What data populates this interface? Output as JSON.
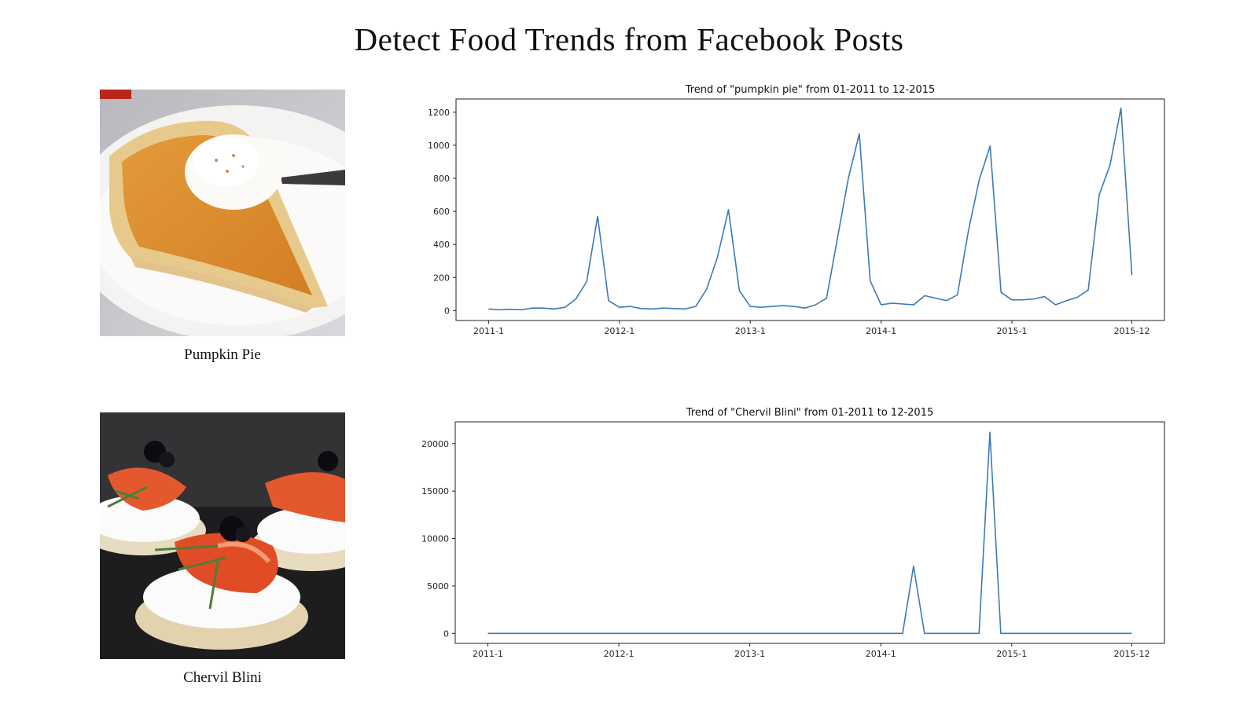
{
  "page": {
    "title": "Detect Food Trends from Facebook Posts"
  },
  "foods": [
    {
      "caption": "Pumpkin Pie",
      "image": "pumpkin-pie-photo"
    },
    {
      "caption": "Chervil Blini",
      "image": "chervil-blini-photo"
    }
  ],
  "colors": {
    "line": "#3a7bb8",
    "axis": "#222222"
  },
  "chart_data": [
    {
      "type": "line",
      "title": "Trend of \"pumpkin pie\" from 01-2011 to 12-2015",
      "xlabel": "",
      "ylabel": "",
      "x_ticks": [
        "2011-1",
        "2012-1",
        "2013-1",
        "2014-1",
        "2015-1",
        "2015-12"
      ],
      "y_ticks": [
        0,
        200,
        400,
        600,
        800,
        1000,
        1200
      ],
      "ylim": [
        -60,
        1280
      ],
      "grid": false,
      "x": [
        "2011-1",
        "2011-2",
        "2011-3",
        "2011-4",
        "2011-5",
        "2011-6",
        "2011-7",
        "2011-8",
        "2011-9",
        "2011-10",
        "2011-11",
        "2011-12",
        "2012-1",
        "2012-2",
        "2012-3",
        "2012-4",
        "2012-5",
        "2012-6",
        "2012-7",
        "2012-8",
        "2012-9",
        "2012-10",
        "2012-11",
        "2012-12",
        "2013-1",
        "2013-2",
        "2013-3",
        "2013-4",
        "2013-5",
        "2013-6",
        "2013-7",
        "2013-8",
        "2013-9",
        "2013-10",
        "2013-11",
        "2013-12",
        "2014-1",
        "2014-2",
        "2014-3",
        "2014-4",
        "2014-5",
        "2014-6",
        "2014-7",
        "2014-8",
        "2014-9",
        "2014-10",
        "2014-11",
        "2014-12",
        "2015-1",
        "2015-2",
        "2015-3",
        "2015-4",
        "2015-5",
        "2015-6",
        "2015-7",
        "2015-8",
        "2015-9",
        "2015-10",
        "2015-11",
        "2015-12"
      ],
      "values": [
        10,
        5,
        8,
        5,
        15,
        15,
        10,
        20,
        70,
        175,
        570,
        60,
        20,
        25,
        12,
        10,
        15,
        12,
        10,
        25,
        130,
        325,
        610,
        120,
        25,
        20,
        25,
        30,
        25,
        15,
        35,
        75,
        440,
        800,
        1070,
        180,
        35,
        45,
        40,
        35,
        90,
        75,
        60,
        95,
        480,
        790,
        995,
        110,
        65,
        65,
        70,
        85,
        35,
        60,
        80,
        125,
        700,
        880,
        1225,
        215
      ]
    },
    {
      "type": "line",
      "title": "Trend of \"Chervil Blini\" from 01-2011 to 12-2015",
      "xlabel": "",
      "ylabel": "",
      "x_ticks": [
        "2011-1",
        "2012-1",
        "2013-1",
        "2014-1",
        "2015-1",
        "2015-12"
      ],
      "y_ticks": [
        0,
        5000,
        10000,
        15000,
        20000
      ],
      "ylim": [
        -1050,
        22300
      ],
      "grid": false,
      "x": [
        "2011-1",
        "2011-2",
        "2011-3",
        "2011-4",
        "2011-5",
        "2011-6",
        "2011-7",
        "2011-8",
        "2011-9",
        "2011-10",
        "2011-11",
        "2011-12",
        "2012-1",
        "2012-2",
        "2012-3",
        "2012-4",
        "2012-5",
        "2012-6",
        "2012-7",
        "2012-8",
        "2012-9",
        "2012-10",
        "2012-11",
        "2012-12",
        "2013-1",
        "2013-2",
        "2013-3",
        "2013-4",
        "2013-5",
        "2013-6",
        "2013-7",
        "2013-8",
        "2013-9",
        "2013-10",
        "2013-11",
        "2013-12",
        "2014-1",
        "2014-2",
        "2014-3",
        "2014-4",
        "2014-5",
        "2014-6",
        "2014-7",
        "2014-8",
        "2014-9",
        "2014-10",
        "2014-11",
        "2014-12",
        "2015-1",
        "2015-2",
        "2015-3",
        "2015-4",
        "2015-5",
        "2015-6",
        "2015-7",
        "2015-8",
        "2015-9",
        "2015-10",
        "2015-11",
        "2015-12"
      ],
      "values": [
        0,
        0,
        0,
        0,
        0,
        0,
        0,
        0,
        0,
        0,
        0,
        0,
        0,
        0,
        0,
        0,
        0,
        0,
        0,
        0,
        0,
        0,
        0,
        0,
        0,
        0,
        0,
        0,
        0,
        0,
        0,
        0,
        0,
        0,
        0,
        0,
        0,
        0,
        0,
        7100,
        0,
        0,
        0,
        0,
        0,
        0,
        21200,
        0,
        0,
        0,
        0,
        0,
        0,
        0,
        0,
        0,
        0,
        0,
        0,
        0
      ]
    }
  ]
}
